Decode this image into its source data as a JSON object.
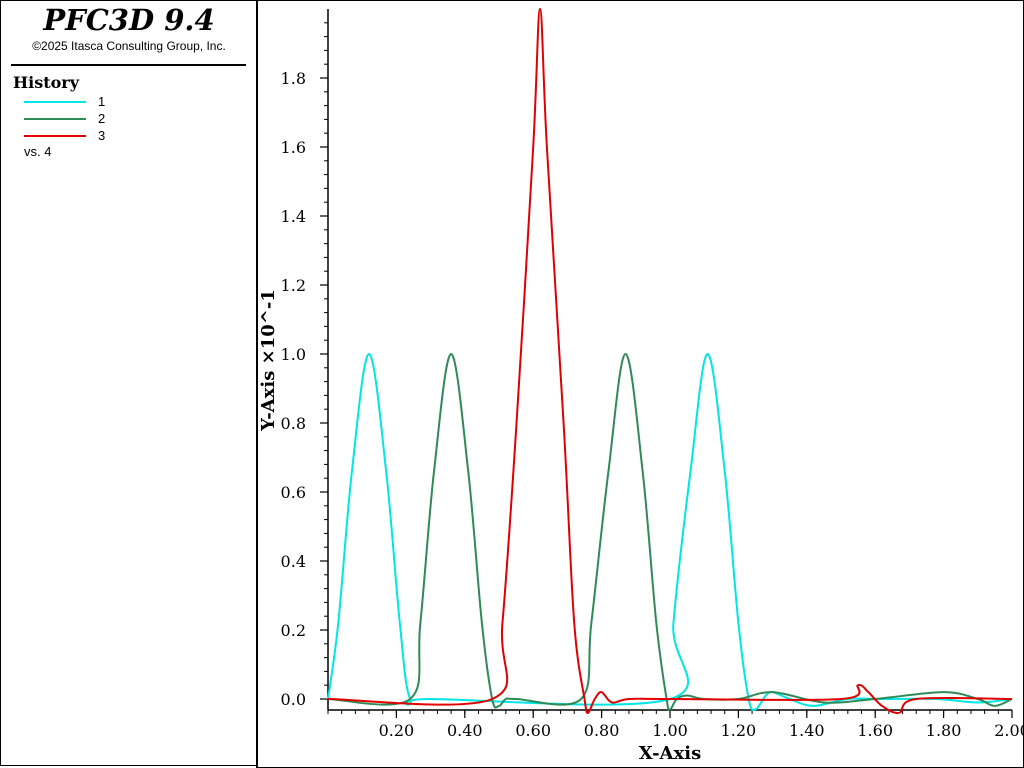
{
  "app": {
    "title": "PFC3D 9.4",
    "copyright": "©2025 Itasca Consulting Group, Inc."
  },
  "legend": {
    "title": "History",
    "entries": [
      {
        "label": "1",
        "color": "#00e5e5"
      },
      {
        "label": "2",
        "color": "#2e8b57"
      },
      {
        "label": "3",
        "color": "#e00000"
      }
    ],
    "vs": "vs. 4"
  },
  "chart_data": {
    "type": "line",
    "xlabel": "X-Axis",
    "ylabel": "Y-Axis ×10^-1",
    "xlim": [
      0,
      2.0
    ],
    "ylim": [
      -0.04,
      2.0
    ],
    "xticks": [
      "0.20",
      "0.40",
      "0.60",
      "0.80",
      "1.00",
      "1.20",
      "1.40",
      "1.60",
      "1.80",
      "2.00"
    ],
    "yticks": [
      "0.0",
      "0.2",
      "0.4",
      "0.6",
      "0.8",
      "1.0",
      "1.2",
      "1.4",
      "1.6",
      "1.8"
    ],
    "series": [
      {
        "name": "1",
        "color": "#00e5e5",
        "points": [
          [
            0.0,
            0.0
          ],
          [
            0.03,
            0.22
          ],
          [
            0.07,
            0.66
          ],
          [
            0.12,
            1.0
          ],
          [
            0.17,
            0.66
          ],
          [
            0.21,
            0.22
          ],
          [
            0.24,
            0.0
          ],
          [
            0.3,
            0.0
          ],
          [
            1.0,
            0.0
          ],
          [
            1.01,
            0.22
          ],
          [
            1.06,
            0.66
          ],
          [
            1.11,
            1.0
          ],
          [
            1.16,
            0.66
          ],
          [
            1.2,
            0.22
          ],
          [
            1.23,
            0.0
          ],
          [
            1.25,
            -0.03
          ],
          [
            1.28,
            0.01
          ],
          [
            1.3,
            0.02
          ],
          [
            1.35,
            0.0
          ],
          [
            1.42,
            -0.02
          ],
          [
            1.52,
            0.0
          ],
          [
            1.62,
            0.0
          ],
          [
            1.78,
            0.0
          ],
          [
            1.9,
            -0.01
          ],
          [
            2.0,
            0.0
          ]
        ]
      },
      {
        "name": "2",
        "color": "#2e8b57",
        "points": [
          [
            0.0,
            0.0
          ],
          [
            0.24,
            0.0
          ],
          [
            0.27,
            0.22
          ],
          [
            0.31,
            0.66
          ],
          [
            0.36,
            1.0
          ],
          [
            0.41,
            0.66
          ],
          [
            0.45,
            0.22
          ],
          [
            0.48,
            0.0
          ],
          [
            0.5,
            -0.02
          ],
          [
            0.52,
            0.0
          ],
          [
            0.55,
            0.0
          ],
          [
            0.74,
            0.0
          ],
          [
            0.77,
            0.22
          ],
          [
            0.82,
            0.66
          ],
          [
            0.87,
            1.0
          ],
          [
            0.92,
            0.66
          ],
          [
            0.96,
            0.22
          ],
          [
            0.99,
            0.0
          ],
          [
            1.0,
            -0.03
          ],
          [
            1.02,
            0.0
          ],
          [
            1.05,
            0.01
          ],
          [
            1.1,
            0.0
          ],
          [
            1.2,
            0.0
          ],
          [
            1.3,
            0.02
          ],
          [
            1.45,
            -0.01
          ],
          [
            1.6,
            0.0
          ],
          [
            1.8,
            0.02
          ],
          [
            1.9,
            0.0
          ],
          [
            1.95,
            -0.02
          ],
          [
            2.0,
            0.0
          ]
        ]
      },
      {
        "name": "3",
        "color": "#e00000",
        "points": [
          [
            0.0,
            0.0
          ],
          [
            0.48,
            0.0
          ],
          [
            0.51,
            0.22
          ],
          [
            0.55,
            0.78
          ],
          [
            0.6,
            1.6
          ],
          [
            0.62,
            2.0
          ],
          [
            0.64,
            1.6
          ],
          [
            0.69,
            0.78
          ],
          [
            0.72,
            0.22
          ],
          [
            0.75,
            0.0
          ],
          [
            0.76,
            -0.04
          ],
          [
            0.78,
            0.0
          ],
          [
            0.8,
            0.02
          ],
          [
            0.83,
            -0.01
          ],
          [
            0.88,
            0.0
          ],
          [
            1.0,
            0.0
          ],
          [
            1.5,
            0.0
          ],
          [
            1.55,
            0.04
          ],
          [
            1.58,
            0.02
          ],
          [
            1.62,
            -0.02
          ],
          [
            1.67,
            -0.04
          ],
          [
            1.72,
            0.0
          ],
          [
            2.0,
            0.0
          ]
        ]
      }
    ]
  }
}
